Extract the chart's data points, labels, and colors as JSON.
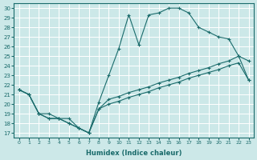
{
  "xlabel": "Humidex (Indice chaleur)",
  "xlim": [
    -0.5,
    23.5
  ],
  "ylim": [
    16.5,
    30.5
  ],
  "yticks": [
    17,
    18,
    19,
    20,
    21,
    22,
    23,
    24,
    25,
    26,
    27,
    28,
    29,
    30
  ],
  "xticks": [
    0,
    1,
    2,
    3,
    4,
    5,
    6,
    7,
    8,
    9,
    10,
    11,
    12,
    13,
    14,
    15,
    16,
    17,
    18,
    19,
    20,
    21,
    22,
    23
  ],
  "background_color": "#cce8e8",
  "grid_color": "#b0d8d8",
  "line_color": "#1a6b6b",
  "line1_x": [
    0,
    1,
    2,
    3,
    4,
    5,
    6,
    7,
    8,
    9,
    10,
    11,
    12,
    13,
    14,
    15,
    16,
    17,
    18,
    19,
    20,
    21,
    22,
    23
  ],
  "line1_y": [
    21.5,
    21.0,
    19.0,
    18.5,
    18.5,
    18.0,
    17.5,
    17.0,
    19.5,
    20.5,
    20.8,
    21.2,
    21.5,
    21.8,
    22.2,
    22.5,
    22.8,
    23.2,
    23.5,
    23.8,
    24.2,
    24.5,
    25.0,
    22.5
  ],
  "line2_x": [
    0,
    1,
    2,
    3,
    4,
    5,
    6,
    7,
    8,
    9,
    10,
    11,
    12,
    13,
    14,
    15,
    16,
    17,
    18,
    19,
    20,
    21,
    22,
    23
  ],
  "line2_y": [
    21.5,
    21.0,
    19.0,
    18.5,
    18.5,
    18.0,
    17.5,
    17.0,
    20.2,
    23.0,
    25.8,
    29.3,
    26.2,
    29.3,
    29.5,
    30.0,
    30.0,
    29.5,
    28.0,
    27.5,
    27.0,
    26.8,
    25.0,
    24.5
  ],
  "line3_x": [
    0,
    1,
    2,
    3,
    4,
    5,
    6,
    7,
    8,
    9,
    10,
    11,
    12,
    13,
    14,
    15,
    16,
    17,
    18,
    19,
    20,
    21,
    22,
    23
  ],
  "line3_y": [
    21.5,
    21.0,
    19.0,
    19.0,
    18.5,
    18.5,
    17.5,
    17.0,
    19.5,
    20.0,
    20.3,
    20.7,
    21.0,
    21.3,
    21.7,
    22.0,
    22.3,
    22.7,
    23.0,
    23.3,
    23.6,
    24.0,
    24.3,
    22.5
  ]
}
